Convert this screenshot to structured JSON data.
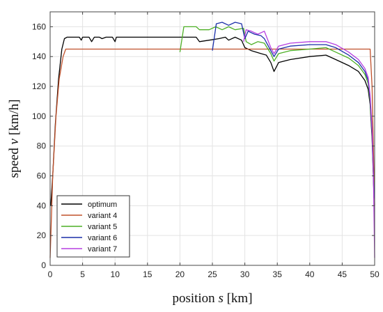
{
  "chart_data": {
    "type": "line",
    "title": "",
    "xlabel": {
      "prefix": "position ",
      "symbol": "s",
      "suffix": " [km]"
    },
    "ylabel": {
      "prefix": "speed ",
      "symbol": "v",
      "suffix": " [km/h]"
    },
    "xlim": [
      0,
      50
    ],
    "ylim": [
      0,
      170
    ],
    "xticks": [
      0,
      5,
      10,
      15,
      20,
      25,
      30,
      35,
      40,
      45,
      50
    ],
    "yticks": [
      0,
      20,
      40,
      60,
      80,
      100,
      120,
      140,
      160
    ],
    "grid": true,
    "legend_position": "bottom-left",
    "series": [
      {
        "name": "optimum",
        "color": "#000000",
        "points": [
          [
            0.1,
            40
          ],
          [
            0.4,
            60
          ],
          [
            0.8,
            95
          ],
          [
            1.3,
            125
          ],
          [
            1.8,
            145
          ],
          [
            2.2,
            152
          ],
          [
            2.6,
            153
          ],
          [
            4.5,
            153
          ],
          [
            4.8,
            151
          ],
          [
            5.0,
            153
          ],
          [
            6.0,
            153
          ],
          [
            6.4,
            150
          ],
          [
            6.8,
            153
          ],
          [
            7.6,
            153
          ],
          [
            8.0,
            152
          ],
          [
            8.6,
            153
          ],
          [
            9.6,
            153
          ],
          [
            10.0,
            150
          ],
          [
            10.2,
            153
          ],
          [
            22.5,
            153
          ],
          [
            23.0,
            150
          ],
          [
            24.5,
            151
          ],
          [
            26.0,
            152
          ],
          [
            27.0,
            153
          ],
          [
            27.5,
            151
          ],
          [
            28.5,
            153
          ],
          [
            29.5,
            151
          ],
          [
            30.0,
            146
          ],
          [
            31.0,
            144
          ],
          [
            32.5,
            142
          ],
          [
            33.3,
            141
          ],
          [
            34.0,
            136
          ],
          [
            34.5,
            130
          ],
          [
            35.2,
            136
          ],
          [
            37.0,
            138
          ],
          [
            40.0,
            140
          ],
          [
            42.5,
            141
          ],
          [
            44.0,
            138
          ],
          [
            46.0,
            134
          ],
          [
            47.5,
            130
          ],
          [
            48.5,
            124
          ],
          [
            49.0,
            118
          ],
          [
            49.3,
            108
          ],
          [
            49.6,
            85
          ],
          [
            49.8,
            60
          ],
          [
            49.9,
            45
          ]
        ]
      },
      {
        "name": "variant 4",
        "color": "#c0502a",
        "points": [
          [
            0.0,
            5
          ],
          [
            0.4,
            60
          ],
          [
            0.9,
            100
          ],
          [
            1.4,
            125
          ],
          [
            2.0,
            140
          ],
          [
            2.4,
            145
          ],
          [
            49.3,
            145
          ],
          [
            49.6,
            120
          ],
          [
            49.8,
            80
          ],
          [
            50.0,
            40
          ]
        ]
      },
      {
        "name": "variant 5",
        "color": "#4caf24",
        "points": [
          [
            20.0,
            143
          ],
          [
            20.6,
            160
          ],
          [
            22.5,
            160
          ],
          [
            23.0,
            158
          ],
          [
            24.5,
            158
          ],
          [
            25.5,
            160
          ],
          [
            26.5,
            158
          ],
          [
            27.5,
            160
          ],
          [
            28.5,
            158
          ],
          [
            29.8,
            159
          ],
          [
            30.2,
            150
          ],
          [
            31.0,
            148
          ],
          [
            32.0,
            150
          ],
          [
            33.0,
            149
          ],
          [
            34.0,
            142
          ],
          [
            34.5,
            137
          ],
          [
            35.2,
            142
          ],
          [
            37.0,
            144
          ],
          [
            40.0,
            145
          ],
          [
            42.5,
            146
          ],
          [
            44.0,
            143
          ],
          [
            46.0,
            139
          ],
          [
            47.5,
            134
          ],
          [
            48.5,
            128
          ],
          [
            49.0,
            122
          ],
          [
            49.3,
            110
          ],
          [
            49.6,
            88
          ],
          [
            49.8,
            62
          ],
          [
            49.9,
            45
          ]
        ]
      },
      {
        "name": "variant 6",
        "color": "#1a2ea8",
        "points": [
          [
            25.0,
            144
          ],
          [
            25.6,
            162
          ],
          [
            26.5,
            163
          ],
          [
            27.5,
            161
          ],
          [
            28.5,
            163
          ],
          [
            29.5,
            162
          ],
          [
            30.0,
            152
          ],
          [
            30.5,
            157
          ],
          [
            31.5,
            155
          ],
          [
            32.5,
            154
          ],
          [
            33.0,
            152
          ],
          [
            34.0,
            144
          ],
          [
            34.5,
            140
          ],
          [
            35.2,
            145
          ],
          [
            37.0,
            147
          ],
          [
            40.0,
            148
          ],
          [
            42.5,
            148
          ],
          [
            44.0,
            146
          ],
          [
            46.0,
            141
          ],
          [
            47.5,
            136
          ],
          [
            48.5,
            130
          ],
          [
            49.0,
            124
          ],
          [
            49.3,
            112
          ],
          [
            49.6,
            90
          ],
          [
            49.8,
            63
          ],
          [
            49.9,
            45
          ]
        ]
      },
      {
        "name": "variant 7",
        "color": "#b53ee0",
        "points": [
          [
            29.8,
            150
          ],
          [
            30.2,
            158
          ],
          [
            31.0,
            157
          ],
          [
            32.0,
            155
          ],
          [
            33.0,
            157
          ],
          [
            34.0,
            146
          ],
          [
            34.5,
            142
          ],
          [
            35.2,
            147
          ],
          [
            37.0,
            149
          ],
          [
            40.0,
            150
          ],
          [
            42.5,
            150
          ],
          [
            44.0,
            148
          ],
          [
            46.0,
            143
          ],
          [
            47.5,
            138
          ],
          [
            48.5,
            132
          ],
          [
            49.0,
            126
          ],
          [
            49.3,
            114
          ],
          [
            49.6,
            92
          ],
          [
            49.8,
            64
          ],
          [
            50.0,
            5
          ]
        ]
      }
    ]
  }
}
